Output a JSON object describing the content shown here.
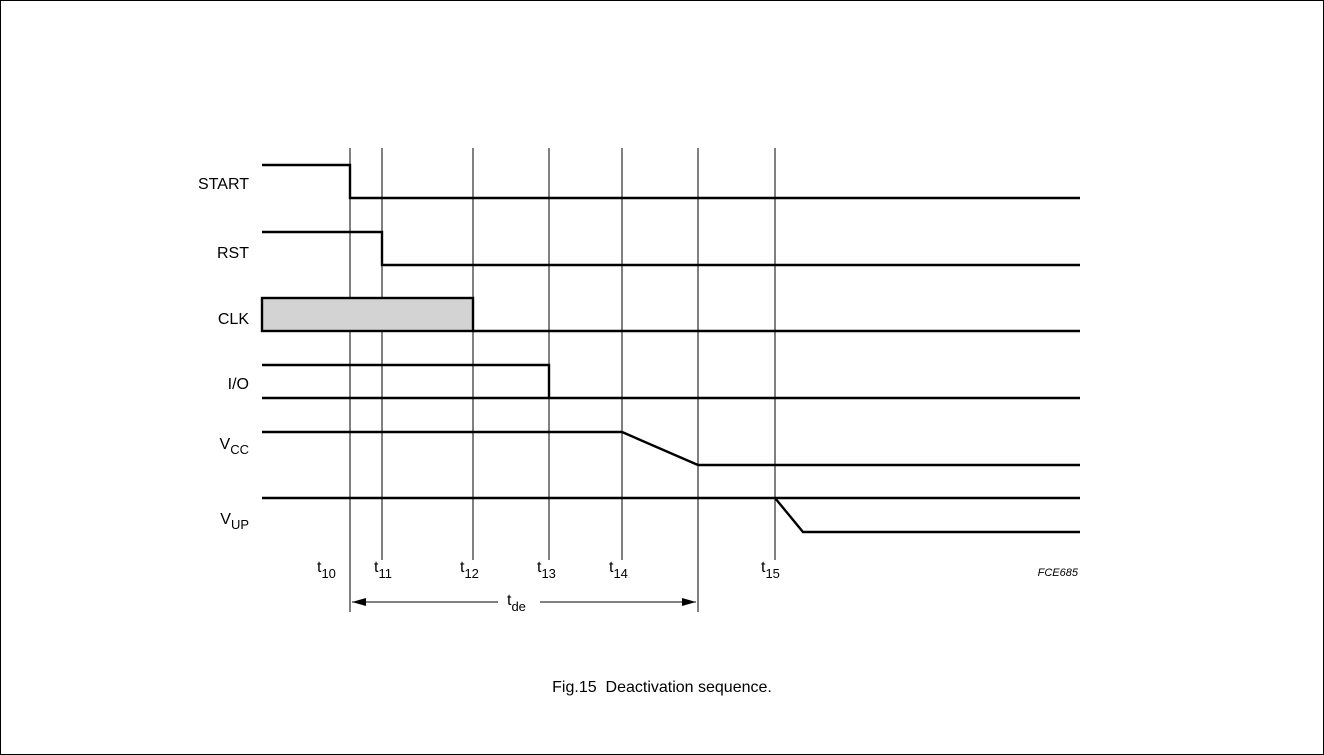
{
  "diagram": {
    "signals": [
      {
        "name": "START",
        "sub": ""
      },
      {
        "name": "RST",
        "sub": ""
      },
      {
        "name": "CLK",
        "sub": ""
      },
      {
        "name": "I/O",
        "sub": ""
      },
      {
        "name": "V",
        "sub": "CC"
      },
      {
        "name": "V",
        "sub": "UP"
      }
    ],
    "time_markers": [
      {
        "base": "t",
        "sub": "10"
      },
      {
        "base": "t",
        "sub": "11"
      },
      {
        "base": "t",
        "sub": "12"
      },
      {
        "base": "t",
        "sub": "13"
      },
      {
        "base": "t",
        "sub": "14"
      },
      {
        "base": "t",
        "sub": "15"
      }
    ],
    "duration": {
      "base": "t",
      "sub": "de"
    },
    "figure_code": "FCE685",
    "caption": "Fig.15  Deactivation sequence.",
    "colors": {
      "line": "#000000",
      "clk_fill": "#d3d3d3",
      "background": "#ffffff"
    }
  }
}
